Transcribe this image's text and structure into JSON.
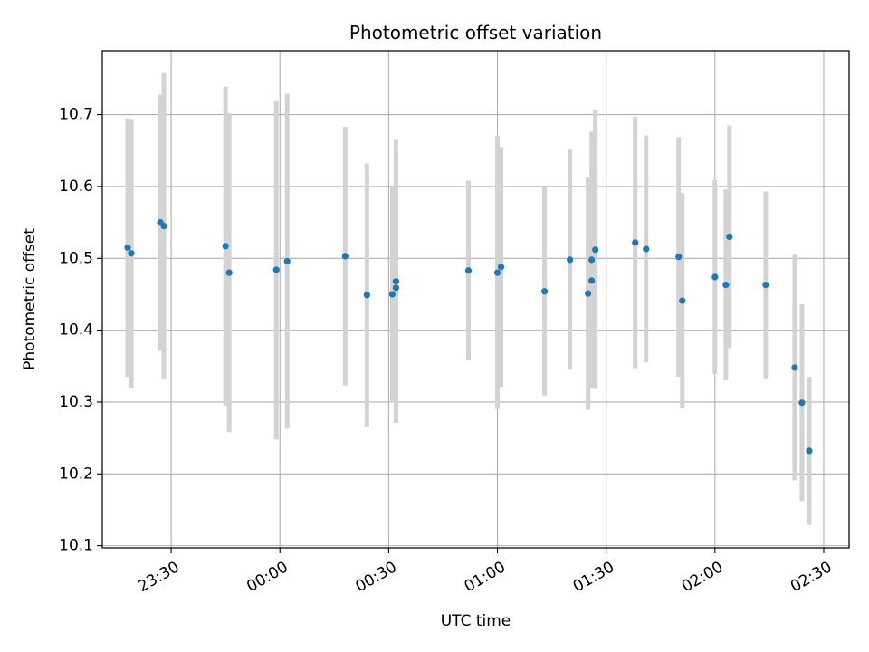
{
  "chart_data": {
    "type": "scatter",
    "title": "Photometric offset variation",
    "xlabel": "UTC time",
    "ylabel": "Photometric offset",
    "x_tick_labels": [
      "23:30",
      "00:00",
      "00:30",
      "01:00",
      "01:30",
      "02:00",
      "02:30"
    ],
    "x_tick_times": [
      "23:30",
      "00:00",
      "00:30",
      "01:00",
      "01:30",
      "02:00",
      "02:30"
    ],
    "y_ticks": [
      10.1,
      10.2,
      10.3,
      10.4,
      10.5,
      10.6,
      10.7
    ],
    "y_tick_labels": [
      "10.1",
      "10.2",
      "10.3",
      "10.4",
      "10.5",
      "10.6",
      "10.7"
    ],
    "xlim": [
      "23:11",
      "02:37"
    ],
    "ylim": [
      10.097,
      10.789
    ],
    "grid": true,
    "marker_color": "#1f77b4",
    "errorbar_color": "#d3d3d3",
    "points": [
      {
        "time": "23:18",
        "y": 10.515,
        "err": 0.18
      },
      {
        "time": "23:19",
        "y": 10.507,
        "err": 0.187
      },
      {
        "time": "23:27",
        "y": 10.55,
        "err": 0.178
      },
      {
        "time": "23:28",
        "y": 10.545,
        "err": 0.213
      },
      {
        "time": "23:45",
        "y": 10.517,
        "err": 0.222
      },
      {
        "time": "23:46",
        "y": 10.48,
        "err": 0.222
      },
      {
        "time": "23:59",
        "y": 10.484,
        "err": 0.236
      },
      {
        "time": "00:02",
        "y": 10.496,
        "err": 0.233
      },
      {
        "time": "00:18",
        "y": 10.503,
        "err": 0.18
      },
      {
        "time": "00:24",
        "y": 10.449,
        "err": 0.183
      },
      {
        "time": "00:31",
        "y": 10.45,
        "err": 0.15
      },
      {
        "time": "00:32",
        "y": 10.468,
        "err": 0.197
      },
      {
        "time": "00:32",
        "y": 10.459,
        "err": 0.186
      },
      {
        "time": "00:52",
        "y": 10.483,
        "err": 0.125
      },
      {
        "time": "01:00",
        "y": 10.48,
        "err": 0.19
      },
      {
        "time": "01:01",
        "y": 10.488,
        "err": 0.167
      },
      {
        "time": "01:13",
        "y": 10.454,
        "err": 0.145
      },
      {
        "time": "01:20",
        "y": 10.498,
        "err": 0.153
      },
      {
        "time": "01:25",
        "y": 10.451,
        "err": 0.162
      },
      {
        "time": "01:26",
        "y": 10.469,
        "err": 0.15
      },
      {
        "time": "01:26",
        "y": 10.498,
        "err": 0.178
      },
      {
        "time": "01:27",
        "y": 10.512,
        "err": 0.194
      },
      {
        "time": "01:38",
        "y": 10.522,
        "err": 0.175
      },
      {
        "time": "01:41",
        "y": 10.513,
        "err": 0.158
      },
      {
        "time": "01:50",
        "y": 10.502,
        "err": 0.167
      },
      {
        "time": "01:51",
        "y": 10.441,
        "err": 0.15
      },
      {
        "time": "02:00",
        "y": 10.474,
        "err": 0.135
      },
      {
        "time": "02:03",
        "y": 10.463,
        "err": 0.133
      },
      {
        "time": "02:04",
        "y": 10.53,
        "err": 0.155
      },
      {
        "time": "02:14",
        "y": 10.463,
        "err": 0.13
      },
      {
        "time": "02:22",
        "y": 10.348,
        "err": 0.157
      },
      {
        "time": "02:24",
        "y": 10.299,
        "err": 0.137
      },
      {
        "time": "02:26",
        "y": 10.232,
        "err": 0.103
      }
    ]
  }
}
